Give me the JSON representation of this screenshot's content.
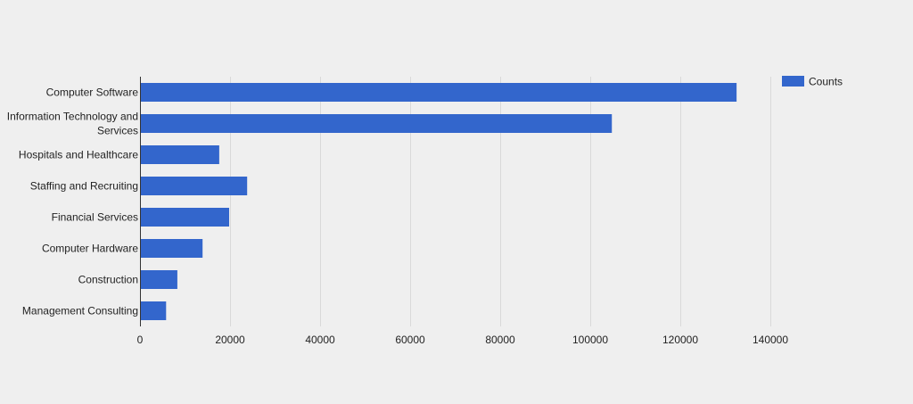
{
  "chart_data": {
    "type": "bar",
    "orientation": "horizontal",
    "categories": [
      "Computer Software",
      "Information Technology and Services",
      "Hospitals and Healthcare",
      "Staffing and Recruiting",
      "Financial Services",
      "Computer Hardware",
      "Construction",
      "Management Consulting"
    ],
    "category_label_lines": [
      [
        "Computer Software"
      ],
      [
        "Information Technology and",
        "Services"
      ],
      [
        "Hospitals and Healthcare"
      ],
      [
        "Staffing and Recruiting"
      ],
      [
        "Financial Services"
      ],
      [
        "Computer Hardware"
      ],
      [
        "Construction"
      ],
      [
        "Management Consulting"
      ]
    ],
    "series": [
      {
        "name": "Counts",
        "color": "#3366cc",
        "values": [
          132500,
          104800,
          17600,
          23800,
          19800,
          13900,
          8300,
          5800
        ]
      }
    ],
    "xlim": [
      0,
      140000
    ],
    "x_ticks": [
      0,
      20000,
      40000,
      60000,
      80000,
      100000,
      120000,
      140000
    ],
    "x_tick_labels": [
      "0",
      "20000",
      "40000",
      "60000",
      "80000",
      "100000",
      "120000",
      "140000"
    ],
    "title": "",
    "xlabel": "",
    "ylabel": "",
    "grid": true,
    "grid_color": "#d9d9d9",
    "axis_color": "#333333",
    "background_color": "#efefef",
    "legend": {
      "position": "top-right",
      "entries": [
        "Counts"
      ]
    }
  }
}
